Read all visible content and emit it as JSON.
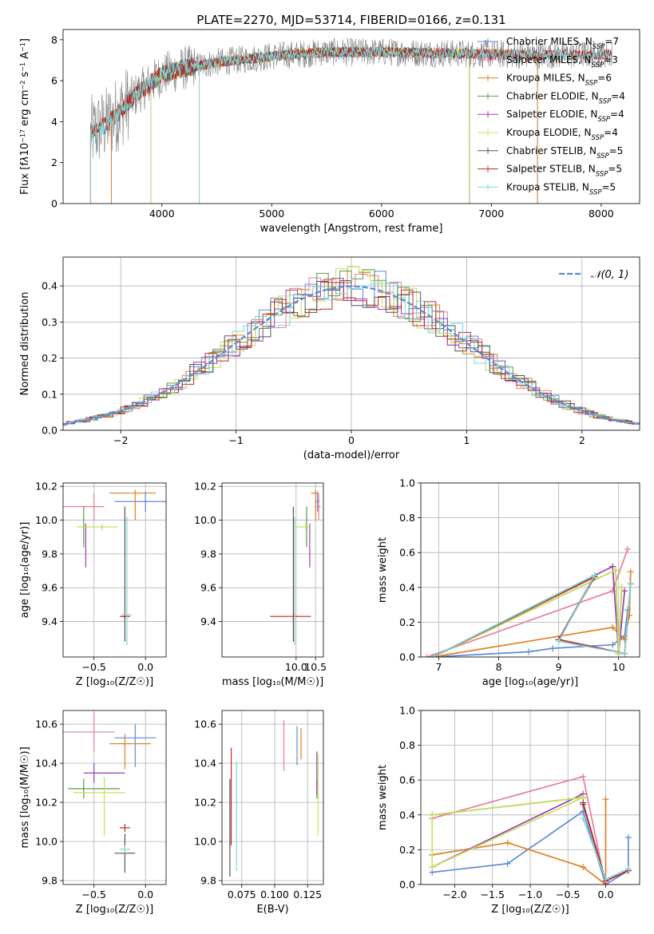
{
  "figure": {
    "title": "PLATE=2270, MJD=53714, FIBERID=0166, z=0.131"
  },
  "colors": {
    "Chabrier MILES": "#5b8bd9",
    "Salpeter MILES": "#e67e9a",
    "Kroupa MILES": "#e0801f",
    "Chabrier ELODIE": "#5a9a4a",
    "Salpeter ELODIE": "#9b3bb5",
    "Kroupa ELODIE": "#c8e05a",
    "Chabrier STELIB": "#555555",
    "Salpeter STELIB": "#c0282a",
    "Kroupa STELIB": "#7fd6d6",
    "normal_curve": "#5b8bd9",
    "data_gray": "#808080"
  },
  "chart_data": [
    {
      "id": "spectrum",
      "type": "line",
      "xlabel": "wavelength [Angstrom, rest frame]",
      "ylabel_html": "Flux [f<tspan font-style='italic'>λ</tspan>10<tspan baseline-shift='super' font-size='8'>−17</tspan> erg cm<tspan baseline-shift='super' font-size='8'>−2</tspan> s<tspan baseline-shift='super' font-size='8'>−1</tspan> A<tspan baseline-shift='super' font-size='8'>−1</tspan>]",
      "xlim": [
        3100,
        8350
      ],
      "ylim": [
        0,
        8.5
      ],
      "xticks": [
        4000,
        5000,
        6000,
        7000,
        8000
      ],
      "yticks": [
        0,
        2,
        4,
        6,
        8
      ],
      "continuum": {
        "x": [
          3350,
          3500,
          3600,
          3700,
          3800,
          3900,
          4000,
          4200,
          4500,
          5000,
          5500,
          6000,
          6500,
          7000,
          7500,
          8000,
          8100
        ],
        "y": [
          3.4,
          3.9,
          4.4,
          5.0,
          5.5,
          5.9,
          6.3,
          6.6,
          6.9,
          7.2,
          7.4,
          7.4,
          7.35,
          7.3,
          7.25,
          7.3,
          7.3
        ]
      },
      "legend": [
        {
          "label": "Chabrier MILES, N",
          "n": "7"
        },
        {
          "label": "Salpeter MILES, N",
          "n": "3"
        },
        {
          "label": "Kroupa MILES, N",
          "n": "6"
        },
        {
          "label": "Chabrier ELODIE, N",
          "n": "4"
        },
        {
          "label": "Salpeter ELODIE, N",
          "n": "4"
        },
        {
          "label": "Kroupa ELODIE, N",
          "n": "4"
        },
        {
          "label": "Chabrier STELIB, N",
          "n": "5"
        },
        {
          "label": "Salpeter STELIB, N",
          "n": "5"
        },
        {
          "label": "Kroupa STELIB, N",
          "n": "5"
        }
      ],
      "legend_sub": "SSP"
    },
    {
      "id": "residuals",
      "type": "histogram",
      "xlabel": "(data-model)/error",
      "ylabel": "Normed distribution",
      "xlim": [
        -2.5,
        2.5
      ],
      "ylim": [
        0,
        0.48
      ],
      "xticks": [
        -2,
        -1,
        0,
        1,
        2
      ],
      "yticks": [
        0.0,
        0.1,
        0.2,
        0.3,
        0.4
      ],
      "legend_label": "𝒩(0, 1)",
      "normal_sigma": 1
    },
    {
      "id": "age_vs_Z",
      "type": "errorbar",
      "xlabel": "Z [log₁₀(Z/Z☉)]",
      "ylabel": "age  [log₁₀(age/yr)]",
      "xlim": [
        -0.8,
        0.2
      ],
      "ylim": [
        9.19,
        10.22
      ],
      "xticks": [
        -0.5,
        0.0
      ],
      "yticks": [
        9.4,
        9.6,
        9.8,
        10.0,
        10.2
      ],
      "points": [
        {
          "model": "Chabrier MILES",
          "x": 0.0,
          "y": 10.11,
          "xerr": [
            0.3,
            0.3
          ],
          "yerr": [
            0.06,
            0.06
          ]
        },
        {
          "model": "Salpeter MILES",
          "x": -0.5,
          "y": 10.08,
          "xerr": [
            0.3,
            0.1
          ],
          "yerr": [
            0.08,
            0.08
          ]
        },
        {
          "model": "Kroupa MILES",
          "x": -0.1,
          "y": 10.16,
          "xerr": [
            0.25,
            0.2
          ],
          "yerr": [
            0.16,
            0.02
          ]
        },
        {
          "model": "Chabrier ELODIE",
          "x": -0.6,
          "y": 9.96,
          "xerr": [
            0.02,
            0.02
          ],
          "yerr": [
            0.12,
            0.12
          ]
        },
        {
          "model": "Salpeter ELODIE",
          "x": -0.58,
          "y": 9.96,
          "xerr": [
            0.01,
            0.01
          ],
          "yerr": [
            0.24,
            0.02
          ]
        },
        {
          "model": "Kroupa ELODIE",
          "x": -0.42,
          "y": 9.96,
          "xerr": [
            0.25,
            0.15
          ],
          "yerr": [
            0.02,
            0.02
          ]
        },
        {
          "model": "Chabrier STELIB",
          "x": -0.2,
          "y": 9.43,
          "xerr": [
            0.02,
            0.02
          ],
          "yerr": [
            0.15,
            0.65
          ]
        },
        {
          "model": "Salpeter STELIB",
          "x": -0.2,
          "y": 9.43,
          "xerr": [
            0.05,
            0.05
          ],
          "yerr": [
            0.02,
            0.02
          ]
        },
        {
          "model": "Kroupa STELIB",
          "x": -0.18,
          "y": 9.44,
          "xerr": [
            0.05,
            0.05
          ],
          "yerr": [
            0.18,
            0.58
          ]
        }
      ]
    },
    {
      "id": "age_vs_mass",
      "type": "errorbar",
      "xlabel": "mass [log₁₀(M/M☉)]",
      "ylabel": "",
      "xlim": [
        8.1,
        10.7
      ],
      "ylim": [
        9.19,
        10.22
      ],
      "xticks": [
        9.0,
        9.5,
        10.0,
        10.5
      ],
      "xticklabels": [
        "",
        "",
        "10.0",
        "10.5"
      ],
      "xtickvals": [
        10.0,
        10.5
      ],
      "yticks": [
        9.4,
        9.6,
        9.8,
        10.0,
        10.2
      ],
      "points": [
        {
          "model": "Chabrier MILES",
          "x": 10.55,
          "y": 10.11,
          "xerr": [
            0.05,
            0.05
          ],
          "yerr": [
            0.06,
            0.06
          ]
        },
        {
          "model": "Salpeter MILES",
          "x": 10.58,
          "y": 10.08,
          "xerr": [
            0.1,
            0.05
          ],
          "yerr": [
            0.08,
            0.08
          ]
        },
        {
          "model": "Kroupa MILES",
          "x": 10.5,
          "y": 10.16,
          "xerr": [
            0.12,
            0.05
          ],
          "yerr": [
            0.16,
            0.02
          ]
        },
        {
          "model": "Chabrier ELODIE",
          "x": 10.27,
          "y": 9.96,
          "xerr": [
            0.02,
            0.02
          ],
          "yerr": [
            0.12,
            0.12
          ]
        },
        {
          "model": "Salpeter ELODIE",
          "x": 10.35,
          "y": 9.96,
          "xerr": [
            0.01,
            0.01
          ],
          "yerr": [
            0.24,
            0.02
          ]
        },
        {
          "model": "Kroupa ELODIE",
          "x": 10.25,
          "y": 9.96,
          "xerr": [
            0.25,
            0.1
          ],
          "yerr": [
            0.02,
            0.02
          ]
        },
        {
          "model": "Chabrier STELIB",
          "x": 9.93,
          "y": 9.43,
          "xerr": [
            0.02,
            0.02
          ],
          "yerr": [
            0.15,
            0.65
          ]
        },
        {
          "model": "Salpeter STELIB",
          "x": 9.93,
          "y": 9.43,
          "xerr": [
            0.6,
            0.45
          ],
          "yerr": [
            0.02,
            0.02
          ]
        },
        {
          "model": "Kroupa STELIB",
          "x": 9.96,
          "y": 9.44,
          "xerr": [
            0.02,
            0.02
          ],
          "yerr": [
            0.18,
            0.58
          ]
        }
      ]
    },
    {
      "id": "mass_weight_vs_age",
      "type": "line",
      "xlabel": "age  [log₁₀(age/yr)]",
      "ylabel": "mass weight",
      "xlim": [
        6.7,
        10.35
      ],
      "ylim": [
        0,
        1.0
      ],
      "xticks": [
        7,
        8,
        9,
        10
      ],
      "yticks": [
        0.0,
        0.2,
        0.4,
        0.6,
        0.8,
        1.0
      ],
      "series": [
        {
          "model": "Chabrier MILES",
          "x": [
            6.9,
            8.5,
            8.9,
            9.9,
            10.1,
            10.15
          ],
          "y": [
            0.0,
            0.03,
            0.05,
            0.07,
            0.12,
            0.27
          ]
        },
        {
          "model": "Salpeter MILES",
          "x": [
            6.8,
            9.9,
            10.15
          ],
          "y": [
            0.0,
            0.38,
            0.62
          ]
        },
        {
          "model": "Kroupa MILES",
          "x": [
            6.9,
            9.9,
            10.1,
            10.18,
            10.2
          ],
          "y": [
            0.0,
            0.17,
            0.1,
            0.24,
            0.49
          ]
        },
        {
          "model": "Chabrier ELODIE",
          "x": [
            6.9,
            9.95,
            10.0,
            10.05
          ],
          "y": [
            0.0,
            0.5,
            0.02,
            0.4
          ]
        },
        {
          "model": "Salpeter ELODIE",
          "x": [
            6.9,
            9.9,
            10.0,
            10.1
          ],
          "y": [
            0.0,
            0.52,
            0.02,
            0.38
          ]
        },
        {
          "model": "Kroupa ELODIE",
          "x": [
            6.9,
            9.95,
            10.0,
            10.05
          ],
          "y": [
            0.0,
            0.5,
            0.02,
            0.4
          ]
        },
        {
          "model": "Chabrier STELIB",
          "x": [
            6.9,
            9.6,
            9.0,
            10.1,
            10.2
          ],
          "y": [
            0.0,
            0.47,
            0.1,
            0.02,
            0.42
          ]
        },
        {
          "model": "Salpeter STELIB",
          "x": [
            6.9,
            9.6,
            9.0,
            10.1,
            10.2
          ],
          "y": [
            0.0,
            0.46,
            0.1,
            0.02,
            0.42
          ]
        },
        {
          "model": "Kroupa STELIB",
          "x": [
            6.9,
            9.6,
            9.0,
            10.1,
            10.2
          ],
          "y": [
            0.0,
            0.47,
            0.09,
            0.02,
            0.42
          ]
        }
      ]
    },
    {
      "id": "mass_vs_Z",
      "type": "errorbar",
      "xlabel": "Z [log₁₀(Z/Z☉)]",
      "ylabel": "mass [log₁₀(M/M☉)]",
      "xlim": [
        -0.8,
        0.2
      ],
      "ylim": [
        9.78,
        10.67
      ],
      "xticks": [
        -0.5,
        0.0
      ],
      "yticks": [
        9.8,
        10.0,
        10.2,
        10.4,
        10.6
      ],
      "points": [
        {
          "model": "Chabrier MILES",
          "x": -0.1,
          "y": 10.53,
          "xerr": [
            0.2,
            0.2
          ],
          "yerr": [
            0.15,
            0.07
          ]
        },
        {
          "model": "Salpeter MILES",
          "x": -0.5,
          "y": 10.56,
          "xerr": [
            0.3,
            0.2
          ],
          "yerr": [
            0.1,
            0.1
          ]
        },
        {
          "model": "Kroupa MILES",
          "x": -0.2,
          "y": 10.5,
          "xerr": [
            0.15,
            0.25
          ],
          "yerr": [
            0.13,
            0.05
          ]
        },
        {
          "model": "Chabrier ELODIE",
          "x": -0.6,
          "y": 10.27,
          "xerr": [
            0.15,
            0.35
          ],
          "yerr": [
            0.05,
            0.05
          ]
        },
        {
          "model": "Salpeter ELODIE",
          "x": -0.5,
          "y": 10.35,
          "xerr": [
            0.1,
            0.3
          ],
          "yerr": [
            0.05,
            0.05
          ]
        },
        {
          "model": "Kroupa ELODIE",
          "x": -0.4,
          "y": 10.25,
          "xerr": [
            0.3,
            0.2
          ],
          "yerr": [
            0.22,
            0.08
          ]
        },
        {
          "model": "Chabrier STELIB",
          "x": -0.2,
          "y": 9.94,
          "xerr": [
            0.1,
            0.1
          ],
          "yerr": [
            0.1,
            0.1
          ]
        },
        {
          "model": "Salpeter STELIB",
          "x": -0.2,
          "y": 10.07,
          "xerr": [
            0.05,
            0.05
          ],
          "yerr": [
            0.02,
            0.02
          ]
        },
        {
          "model": "Kroupa STELIB",
          "x": -0.2,
          "y": 9.96,
          "xerr": [
            0.05,
            0.05
          ],
          "yerr": [
            0.02,
            0.02
          ]
        }
      ]
    },
    {
      "id": "mass_vs_EBV",
      "type": "errorbar",
      "xlabel": "E(B-V)",
      "ylabel": "",
      "xlim": [
        0.06,
        0.137
      ],
      "ylim": [
        9.78,
        10.67
      ],
      "xticks": [
        0.075,
        0.1,
        0.125
      ],
      "yticks": [
        9.8,
        10.0,
        10.2,
        10.4,
        10.6
      ],
      "points": [
        {
          "model": "Chabrier MILES",
          "x": 0.117,
          "y": 10.49,
          "xerr": [
            0.0,
            0.0
          ],
          "yerr": [
            0.1,
            0.1
          ]
        },
        {
          "model": "Salpeter MILES",
          "x": 0.107,
          "y": 10.49,
          "xerr": [
            0.0,
            0.0
          ],
          "yerr": [
            0.13,
            0.13
          ]
        },
        {
          "model": "Kroupa MILES",
          "x": 0.12,
          "y": 10.5,
          "xerr": [
            0.0,
            0.0
          ],
          "yerr": [
            0.08,
            0.08
          ]
        },
        {
          "model": "Chabrier ELODIE",
          "x": 0.132,
          "y": 10.27,
          "xerr": [
            0.0,
            0.0
          ],
          "yerr": [
            0.05,
            0.05
          ]
        },
        {
          "model": "Salpeter ELODIE",
          "x": 0.132,
          "y": 10.35,
          "xerr": [
            0.0,
            0.0
          ],
          "yerr": [
            0.11,
            0.11
          ]
        },
        {
          "model": "Kroupa ELODIE",
          "x": 0.133,
          "y": 10.25,
          "xerr": [
            0.0,
            0.0
          ],
          "yerr": [
            0.22,
            0.2
          ]
        },
        {
          "model": "Chabrier STELIB",
          "x": 0.066,
          "y": 10.07,
          "xerr": [
            0.0,
            0.0
          ],
          "yerr": [
            0.25,
            0.25
          ]
        },
        {
          "model": "Salpeter STELIB",
          "x": 0.067,
          "y": 10.15,
          "xerr": [
            0.0,
            0.0
          ],
          "yerr": [
            0.17,
            0.33
          ]
        },
        {
          "model": "Kroupa STELIB",
          "x": 0.071,
          "y": 10.13,
          "xerr": [
            0.0,
            0.0
          ],
          "yerr": [
            0.28,
            0.28
          ]
        }
      ]
    },
    {
      "id": "mass_weight_vs_Z",
      "type": "line",
      "xlabel": "Z [log₁₀(Z/Z☉)]",
      "ylabel": "mass weight",
      "xlim": [
        -2.45,
        0.45
      ],
      "ylim": [
        0,
        1.0
      ],
      "xticks": [
        -2.0,
        -1.5,
        -1.0,
        -0.5,
        0.0
      ],
      "yticks": [
        0.0,
        0.2,
        0.4,
        0.6,
        0.8,
        1.0
      ],
      "series": [
        {
          "model": "Chabrier MILES",
          "x": [
            -2.3,
            -1.3,
            -0.3,
            0.0,
            0.3,
            0.3
          ],
          "y": [
            0.07,
            0.12,
            0.42,
            0.0,
            0.08,
            0.27
          ]
        },
        {
          "model": "Salpeter MILES",
          "x": [
            -2.3,
            -0.3,
            0.0
          ],
          "y": [
            0.38,
            0.62,
            0.0
          ]
        },
        {
          "model": "Kroupa MILES",
          "x": [
            -2.3,
            -1.3,
            -0.3,
            0.0,
            0.0
          ],
          "y": [
            0.17,
            0.24,
            0.1,
            0.0,
            0.49
          ]
        },
        {
          "model": "Chabrier ELODIE",
          "x": [
            -2.3,
            -0.3,
            -0.3,
            -2.3
          ],
          "y": [
            0.4,
            0.5,
            0.5,
            0.4
          ]
        },
        {
          "model": "Salpeter ELODIE",
          "x": [
            -2.3,
            -0.3,
            -0.3
          ],
          "y": [
            0.1,
            0.52,
            0.5
          ]
        },
        {
          "model": "Kroupa ELODIE",
          "x": [
            -2.3,
            -0.3,
            -0.3,
            -2.3,
            -2.3
          ],
          "y": [
            0.1,
            0.5,
            0.5,
            0.4,
            0.1
          ]
        },
        {
          "model": "Chabrier STELIB",
          "x": [
            -0.3,
            0.0,
            0.3
          ],
          "y": [
            0.47,
            0.02,
            0.08
          ]
        },
        {
          "model": "Salpeter STELIB",
          "x": [
            -0.3,
            0.0,
            0.3
          ],
          "y": [
            0.46,
            0.02,
            0.08
          ]
        },
        {
          "model": "Kroupa STELIB",
          "x": [
            -0.3,
            0.0,
            0.3
          ],
          "y": [
            0.38,
            0.03,
            0.09
          ]
        }
      ]
    }
  ]
}
